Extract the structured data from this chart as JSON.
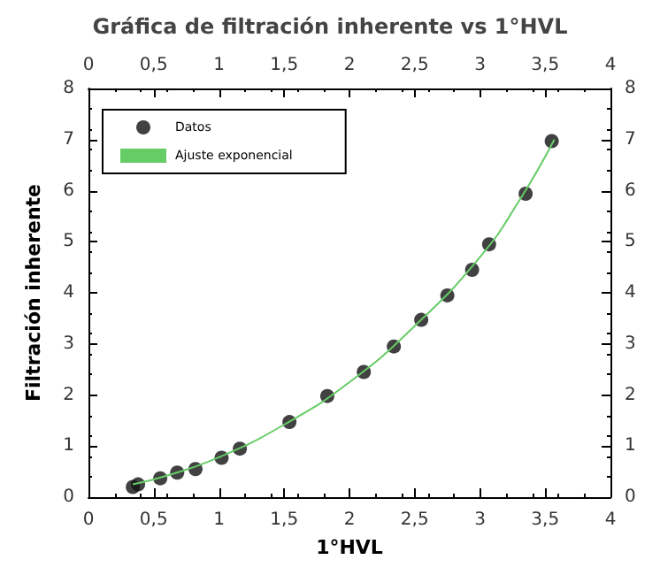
{
  "chart_data": {
    "type": "scatter",
    "title": "Gráfica de filtración inherente vs 1°HVL",
    "xlabel": "1°HVL",
    "ylabel": "Filtración inherente",
    "xlim": [
      0,
      4
    ],
    "xticks": [
      0,
      {
        "value": 0.5,
        "label": "0,5"
      },
      1,
      {
        "value": 1.5,
        "label": "1,5"
      },
      2,
      {
        "value": 2.5,
        "label": "2,5"
      },
      3,
      {
        "value": 3.5,
        "label": "3,5"
      },
      4
    ],
    "x2lim": [
      0,
      4
    ],
    "x2ticks": [
      0,
      {
        "value": 0.5,
        "label": "0,5"
      },
      1,
      {
        "value": 1.5,
        "label": "1,5"
      },
      2,
      {
        "value": 2.5,
        "label": "2,5"
      },
      3,
      {
        "value": 3.5,
        "label": "3,5"
      },
      4
    ],
    "ylim": [
      0,
      8
    ],
    "yticks": [
      0,
      1,
      2,
      3,
      4,
      5,
      6,
      7,
      8
    ],
    "y2lim": [
      0,
      8
    ],
    "y2ticks": [
      0,
      1,
      2,
      3,
      4,
      5,
      6,
      7,
      8
    ],
    "grid": false,
    "legend": "top left",
    "marker": "circle",
    "series": [
      {
        "name": "Datos",
        "color": "#111111",
        "x": [
          0.34,
          0.38,
          0.55,
          0.68,
          0.82,
          1.02,
          1.16,
          1.54,
          1.83,
          2.11,
          2.34,
          2.55,
          2.75,
          2.94,
          3.07,
          3.35,
          3.55
        ],
        "values": [
          0.2,
          0.25,
          0.37,
          0.48,
          0.55,
          0.77,
          0.95,
          1.47,
          1.98,
          2.45,
          2.95,
          3.47,
          3.95,
          4.45,
          4.95,
          5.94,
          6.97
        ]
      },
      {
        "name": "Ajuste exponencial",
        "type": "line",
        "color": "#66cc66",
        "line_style": "solid",
        "marker": "none",
        "x": [
          0.34,
          0.6,
          1.0,
          1.5,
          2.0,
          2.5,
          3.0,
          3.3,
          3.57
        ],
        "values": [
          0.25,
          0.42,
          0.78,
          1.42,
          2.25,
          3.35,
          4.7,
          5.8,
          7.0
        ]
      }
    ]
  }
}
